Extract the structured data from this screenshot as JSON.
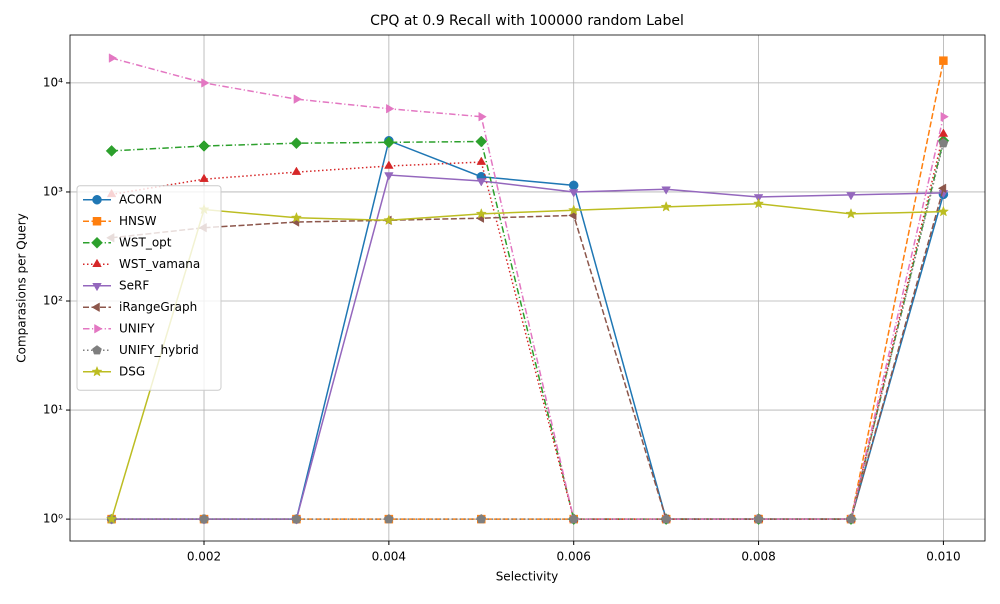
{
  "chart_data": {
    "type": "line",
    "title": "CPQ at 0.9 Recall with 100000 random Label",
    "xlabel": "Selectivity",
    "ylabel": "Comparasions per Query",
    "x": [
      0.001,
      0.002,
      0.003,
      0.004,
      0.005,
      0.006,
      0.007,
      0.008,
      0.009,
      0.01
    ],
    "xlim": [
      0.00055,
      0.01045
    ],
    "xticks": [
      0.002,
      0.004,
      0.006,
      0.008,
      {
        "value": 0.01,
        "label": "0.010"
      }
    ],
    "yscale": "log",
    "ylim": [
      0.63,
      27500
    ],
    "yticks": [
      {
        "value": 1,
        "label": "10⁰"
      },
      {
        "value": 10,
        "label": "10¹"
      },
      {
        "value": 100,
        "label": "10²"
      },
      {
        "value": 1000,
        "label": "10³"
      },
      {
        "value": 10000,
        "label": "10⁴"
      }
    ],
    "grid": true,
    "legend": "center left",
    "series": [
      {
        "name": "ACORN",
        "color": "#1f77b4",
        "marker": "circle",
        "linestyle": "solid",
        "values": [
          1,
          1,
          1,
          2950,
          1380,
          1150,
          1,
          1,
          1,
          950
        ]
      },
      {
        "name": "HNSW",
        "color": "#ff7f0e",
        "marker": "square",
        "linestyle": "dashed",
        "values": [
          1,
          1,
          1,
          1,
          1,
          1,
          1,
          1,
          1,
          16000
        ]
      },
      {
        "name": "WST_opt",
        "color": "#2ca02c",
        "marker": "diamond",
        "linestyle": "dashdot",
        "values": [
          2380,
          2640,
          2800,
          2850,
          2900,
          1,
          1,
          1,
          1,
          2950
        ]
      },
      {
        "name": "WST_vamana",
        "color": "#d62728",
        "marker": "triangle-up",
        "linestyle": "dotted",
        "values": [
          950,
          1310,
          1520,
          1730,
          1880,
          1,
          1,
          1,
          1,
          3400
        ]
      },
      {
        "name": "SeRF",
        "color": "#9467bd",
        "marker": "triangle-down",
        "linestyle": "solid",
        "values": [
          1,
          1,
          1,
          1430,
          1260,
          1000,
          1060,
          900,
          940,
          980
        ]
      },
      {
        "name": "iRangeGraph",
        "color": "#8c564b",
        "marker": "triangle-left",
        "linestyle": "dashed",
        "values": [
          380,
          470,
          530,
          550,
          575,
          610,
          1,
          1,
          1,
          1080
        ]
      },
      {
        "name": "UNIFY",
        "color": "#e377c2",
        "marker": "triangle-right",
        "linestyle": "dashdot",
        "values": [
          16900,
          10000,
          7100,
          5800,
          4900,
          1,
          1,
          1,
          1,
          4900
        ]
      },
      {
        "name": "UNIFY_hybrid",
        "color": "#7f7f7f",
        "marker": "pentagon",
        "linestyle": "dotted",
        "values": [
          1,
          1,
          1,
          1,
          1,
          1,
          1,
          1,
          1,
          2800
        ]
      },
      {
        "name": "DSG",
        "color": "#bcbd22",
        "marker": "star",
        "linestyle": "solid",
        "values": [
          1,
          690,
          580,
          550,
          630,
          680,
          730,
          780,
          630,
          660
        ]
      }
    ]
  }
}
